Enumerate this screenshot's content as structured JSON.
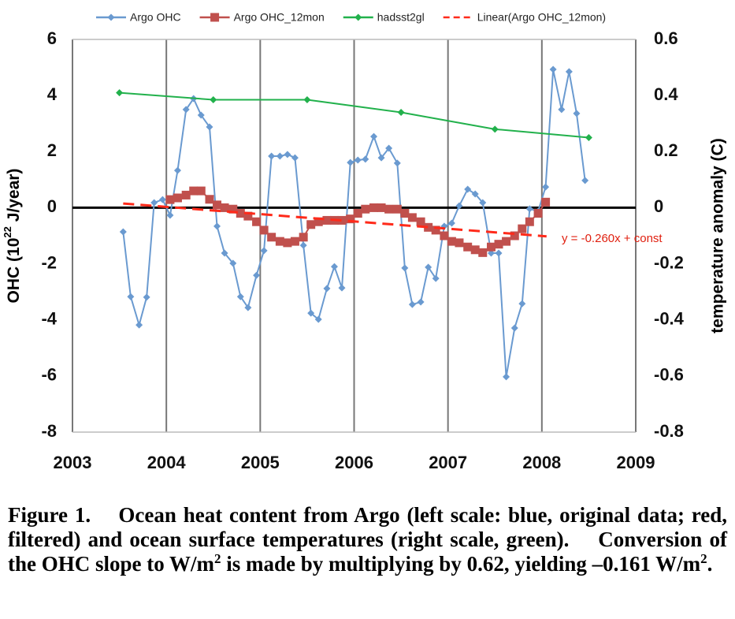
{
  "chart_data": {
    "type": "line",
    "y_label_parts": [
      "OHC (10",
      "22",
      " J/year)"
    ],
    "y2_label": "temperature anomaly (C)",
    "xlim": [
      2003,
      2009
    ],
    "xticks": [
      2003,
      2004,
      2005,
      2006,
      2007,
      2008,
      2009
    ],
    "ylim": [
      -8,
      6
    ],
    "yticks": [
      -8,
      -6,
      -4,
      -2,
      0,
      2,
      4,
      6
    ],
    "y2lim": [
      -0.8,
      0.6
    ],
    "y2ticks": [
      -0.8,
      -0.6,
      -0.4,
      -0.2,
      0,
      0.2,
      0.4,
      0.6
    ],
    "grid": "x",
    "legend": "top",
    "series": [
      {
        "name": "Argo OHC",
        "color": "#6a9ad0",
        "marker": "diamond",
        "x": [
          2003.54,
          2003.62,
          2003.71,
          2003.79,
          2003.87,
          2003.96,
          2004.04,
          2004.12,
          2004.21,
          2004.29,
          2004.37,
          2004.46,
          2004.54,
          2004.62,
          2004.71,
          2004.79,
          2004.87,
          2004.96,
          2005.04,
          2005.12,
          2005.21,
          2005.29,
          2005.37,
          2005.46,
          2005.54,
          2005.62,
          2005.71,
          2005.79,
          2005.87,
          2005.96,
          2006.04,
          2006.12,
          2006.21,
          2006.29,
          2006.37,
          2006.46,
          2006.54,
          2006.62,
          2006.71,
          2006.79,
          2006.87,
          2006.96,
          2007.04,
          2007.12,
          2007.21,
          2007.29,
          2007.37,
          2007.46,
          2007.54,
          2007.62,
          2007.71,
          2007.79,
          2007.87,
          2007.96,
          2008.04,
          2008.12,
          2008.21,
          2008.29,
          2008.37,
          2008.46
        ],
        "values": [
          -0.86,
          -3.17,
          -4.18,
          -3.19,
          0.18,
          0.29,
          -0.27,
          1.33,
          3.5,
          3.89,
          3.3,
          2.88,
          -0.66,
          -1.62,
          -1.98,
          -3.17,
          -3.56,
          -2.41,
          -1.53,
          1.84,
          1.84,
          1.9,
          1.78,
          -1.34,
          -3.76,
          -3.98,
          -2.88,
          -2.1,
          -2.86,
          1.61,
          1.7,
          1.73,
          2.54,
          1.78,
          2.12,
          1.59,
          -2.15,
          -3.45,
          -3.36,
          -2.12,
          -2.52,
          -0.66,
          -0.55,
          0.07,
          0.66,
          0.49,
          0.18,
          -1.62,
          -1.62,
          -6.03,
          -4.29,
          -3.42,
          -0.04,
          -0.13,
          0.74,
          4.93,
          3.5,
          4.85,
          3.36,
          0.97
        ]
      },
      {
        "name": "Argo OHC_12mon",
        "color": "#c0504d",
        "marker": "square",
        "x": [
          2004.04,
          2004.12,
          2004.21,
          2004.29,
          2004.37,
          2004.46,
          2004.54,
          2004.62,
          2004.71,
          2004.79,
          2004.87,
          2004.96,
          2005.04,
          2005.12,
          2005.21,
          2005.29,
          2005.37,
          2005.46,
          2005.54,
          2005.62,
          2005.71,
          2005.79,
          2005.87,
          2005.96,
          2006.04,
          2006.12,
          2006.21,
          2006.29,
          2006.37,
          2006.46,
          2006.54,
          2006.62,
          2006.71,
          2006.79,
          2006.87,
          2006.96,
          2007.04,
          2007.12,
          2007.21,
          2007.29,
          2007.37,
          2007.46,
          2007.54,
          2007.62,
          2007.71,
          2007.79,
          2007.87,
          2007.96,
          2008.04
        ],
        "values": [
          0.29,
          0.35,
          0.45,
          0.6,
          0.6,
          0.3,
          0.1,
          0,
          -0.05,
          -0.2,
          -0.3,
          -0.5,
          -0.8,
          -1.05,
          -1.2,
          -1.25,
          -1.2,
          -1.05,
          -0.6,
          -0.5,
          -0.45,
          -0.45,
          -0.45,
          -0.4,
          -0.2,
          -0.05,
          0,
          0,
          -0.05,
          -0.05,
          -0.2,
          -0.35,
          -0.5,
          -0.7,
          -0.8,
          -1,
          -1.2,
          -1.25,
          -1.4,
          -1.5,
          -1.6,
          -1.4,
          -1.3,
          -1.2,
          -1,
          -0.75,
          -0.5,
          -0.2,
          0.2
        ]
      },
      {
        "name": "hadsst2gl",
        "color": "#22b14c",
        "marker": "diamond",
        "axis": "y2",
        "x": [
          2003.5,
          2004.5,
          2005.5,
          2006.5,
          2007.5,
          2008.5
        ],
        "values": [
          0.41,
          0.385,
          0.385,
          0.34,
          0.28,
          0.25
        ]
      },
      {
        "name": "Linear(Argo OHC_12mon)",
        "color": "#ff2a1a",
        "dash": "14 8",
        "x": [
          2003.54,
          2008.05
        ],
        "values": [
          0.15,
          -1.02
        ]
      }
    ],
    "annotation": "y = -0.260x + const",
    "caption_parts": [
      "Figure 1.",
      "Ocean heat content from Argo (left scale: blue, original data; red, filtered) and ocean surface temperatures (right scale, green).",
      "Conversion of the OHC slope to W/m",
      "2",
      " is made by multiplying by 0.62, yielding –0.161 W/m",
      "2",
      "."
    ]
  }
}
